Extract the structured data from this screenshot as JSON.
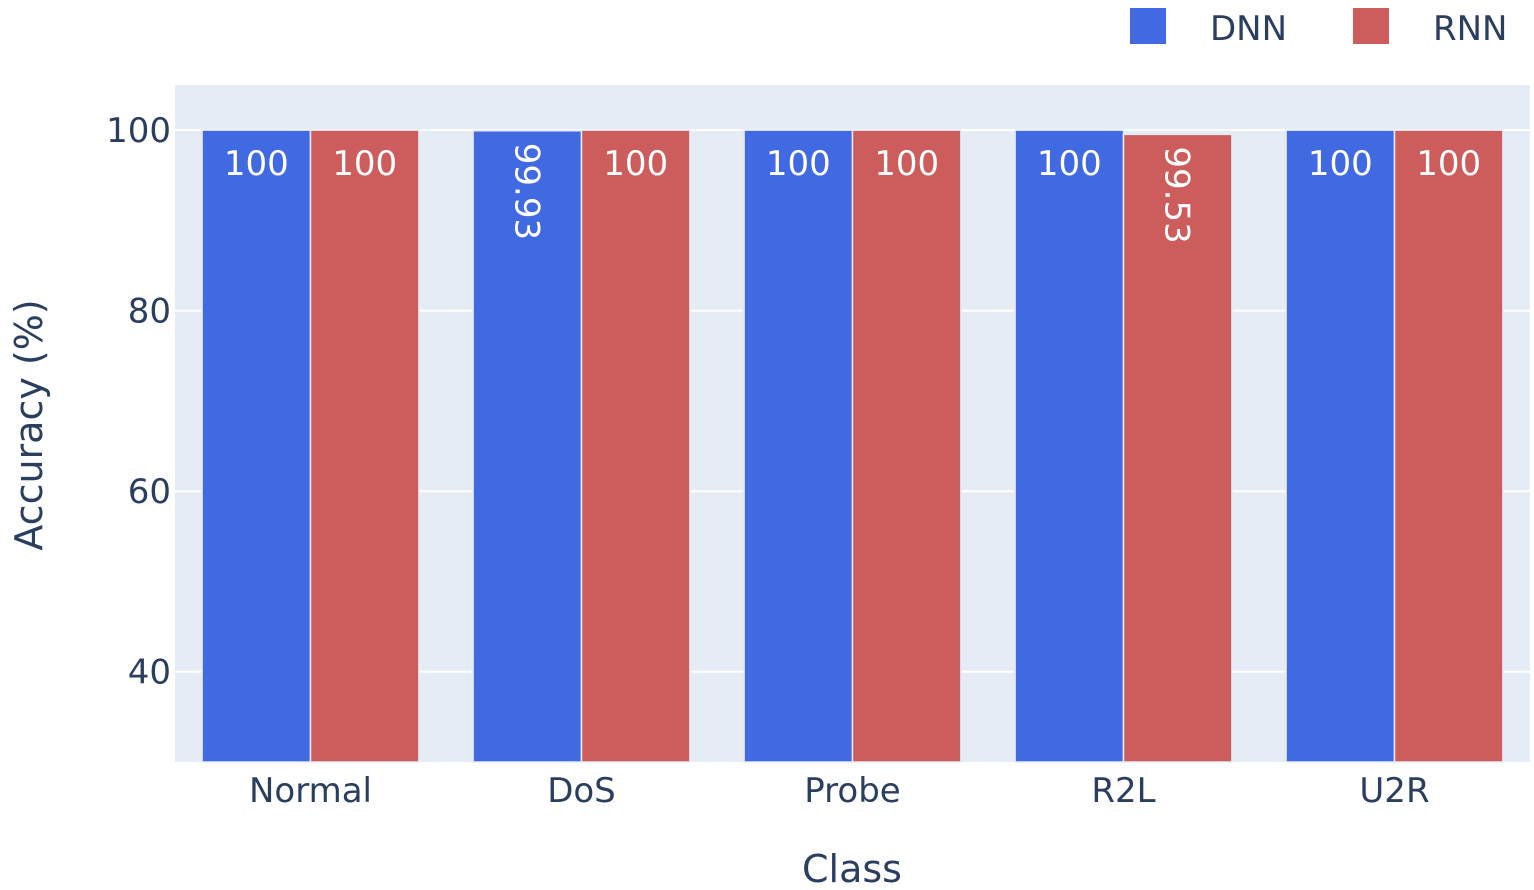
{
  "chart_data": {
    "type": "bar",
    "categories": [
      "Normal",
      "DoS",
      "Probe",
      "R2L",
      "U2R"
    ],
    "series": [
      {
        "name": "DNN",
        "values": [
          100,
          99.93,
          100,
          100,
          100
        ],
        "labels": [
          "100",
          "99.93",
          "100",
          "100",
          "100"
        ],
        "color": "#4169e1"
      },
      {
        "name": "RNN",
        "values": [
          100,
          100,
          100,
          99.53,
          100
        ],
        "labels": [
          "100",
          "100",
          "100",
          "99.53",
          "100"
        ],
        "color": "#cd5c5c"
      }
    ],
    "xlabel": "Class",
    "ylabel": "Accuracy (%)",
    "ylim": [
      30,
      105
    ],
    "yticks": [
      40,
      60,
      80,
      100
    ],
    "ytick_labels": [
      "40",
      "60",
      "80",
      "100"
    ],
    "grid": true,
    "legend_position": "top-right",
    "plot_background": "#e5ecf6"
  }
}
